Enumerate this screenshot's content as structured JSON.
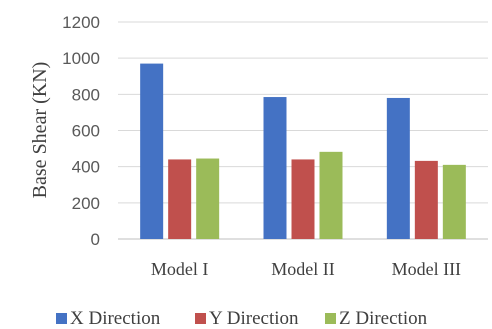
{
  "chart_data": {
    "type": "bar",
    "title": "",
    "xlabel": "",
    "ylabel": "Base Shear (KN)",
    "ylim": [
      0,
      1200
    ],
    "yticks": [
      0,
      200,
      400,
      600,
      800,
      1000,
      1200
    ],
    "grid": true,
    "legend_position": "bottom",
    "categories": [
      "Model I",
      "Model II",
      "Model III"
    ],
    "series": [
      {
        "name": "X Direction",
        "color": "#4472c4",
        "values": [
          970,
          785,
          780
        ]
      },
      {
        "name": "Y Direction",
        "color": "#c0504d",
        "values": [
          440,
          440,
          432
        ]
      },
      {
        "name": "Z Direction",
        "color": "#9bbb59",
        "values": [
          445,
          482,
          410
        ]
      }
    ]
  }
}
